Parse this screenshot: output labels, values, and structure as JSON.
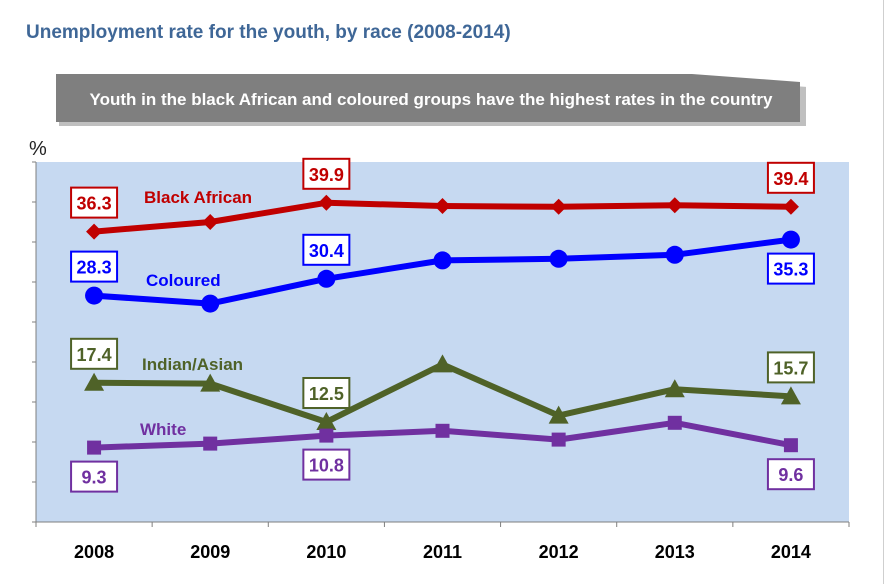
{
  "title": "Unemployment rate for the youth, by race (2008-2014)",
  "callout": "Youth in the black African and coloured groups have the highest rates in the country",
  "colors": {
    "title": "#3f6797",
    "plot_background": "#c6d9f1",
    "callout_fill": "#7f7f7f"
  },
  "chart_data": {
    "type": "line",
    "ylabel": "%",
    "categories": [
      "2008",
      "2009",
      "2010",
      "2011",
      "2012",
      "2013",
      "2014"
    ],
    "ylim": [
      0,
      45
    ],
    "grid": false,
    "series": [
      {
        "name": "Black African",
        "color": "#c00000",
        "marker": "diamond",
        "values": [
          36.3,
          37.5,
          39.9,
          39.5,
          39.4,
          39.6,
          39.4
        ],
        "labels": [
          {
            "index": 0,
            "text": "36.3",
            "position": "above"
          },
          {
            "index": 2,
            "text": "39.9",
            "position": "above"
          },
          {
            "index": 6,
            "text": "39.4",
            "position": "above"
          }
        ]
      },
      {
        "name": "Coloured",
        "color": "#0000ff",
        "marker": "circle",
        "values": [
          28.3,
          27.3,
          30.4,
          32.7,
          32.9,
          33.4,
          35.3
        ],
        "labels": [
          {
            "index": 0,
            "text": "28.3",
            "position": "above"
          },
          {
            "index": 2,
            "text": "30.4",
            "position": "above"
          },
          {
            "index": 6,
            "text": "35.3",
            "position": "below"
          }
        ]
      },
      {
        "name": "Indian/Asian",
        "color": "#4f6228",
        "marker": "triangle",
        "values": [
          17.4,
          17.3,
          12.5,
          19.7,
          13.3,
          16.6,
          15.7
        ],
        "labels": [
          {
            "index": 0,
            "text": "17.4",
            "position": "above"
          },
          {
            "index": 2,
            "text": "12.5",
            "position": "above"
          },
          {
            "index": 6,
            "text": "15.7",
            "position": "above"
          }
        ]
      },
      {
        "name": "White",
        "color": "#7030a0",
        "marker": "square",
        "values": [
          9.3,
          9.8,
          10.8,
          11.4,
          10.3,
          12.4,
          9.6
        ],
        "labels": [
          {
            "index": 0,
            "text": "9.3",
            "position": "below"
          },
          {
            "index": 2,
            "text": "10.8",
            "position": "below"
          },
          {
            "index": 6,
            "text": "9.6",
            "position": "below"
          }
        ]
      }
    ]
  }
}
